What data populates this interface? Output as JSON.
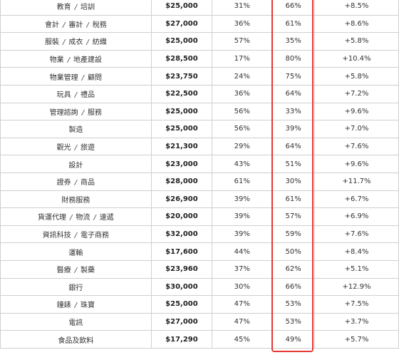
{
  "table": {
    "rows": [
      {
        "industry": [
          "教育",
          "培訓"
        ],
        "salary": "$25,000",
        "col2": "31%",
        "col3": "66%",
        "change": "+8.5%"
      },
      {
        "industry": [
          "會計",
          "審計",
          "稅務"
        ],
        "salary": "$27,000",
        "col2": "36%",
        "col3": "61%",
        "change": "+8.6%"
      },
      {
        "industry": [
          "服裝",
          "成衣",
          "紡織"
        ],
        "salary": "$25,000",
        "col2": "57%",
        "col3": "35%",
        "change": "+5.8%"
      },
      {
        "industry": [
          "物業",
          "地產建設"
        ],
        "salary": "$28,500",
        "col2": "17%",
        "col3": "80%",
        "change": "+10.4%"
      },
      {
        "industry": [
          "物業管理",
          "顧問"
        ],
        "salary": "$23,750",
        "col2": "24%",
        "col3": "75%",
        "change": "+5.8%"
      },
      {
        "industry": [
          "玩具",
          "禮品"
        ],
        "salary": "$22,500",
        "col2": "36%",
        "col3": "64%",
        "change": "+7.2%"
      },
      {
        "industry": [
          "管理諮詢",
          "服務"
        ],
        "salary": "$25,000",
        "col2": "56%",
        "col3": "33%",
        "change": "+9.6%"
      },
      {
        "industry": [
          "製造"
        ],
        "salary": "$25,000",
        "col2": "56%",
        "col3": "39%",
        "change": "+7.0%"
      },
      {
        "industry": [
          "觀光",
          "旅遊"
        ],
        "salary": "$21,300",
        "col2": "29%",
        "col3": "64%",
        "change": "+7.6%"
      },
      {
        "industry": [
          "設計"
        ],
        "salary": "$23,000",
        "col2": "43%",
        "col3": "51%",
        "change": "+9.6%"
      },
      {
        "industry": [
          "證券",
          "商品"
        ],
        "salary": "$28,000",
        "col2": "61%",
        "col3": "30%",
        "change": "+11.7%"
      },
      {
        "industry": [
          "財務服務"
        ],
        "salary": "$26,900",
        "col2": "39%",
        "col3": "61%",
        "change": "+6.7%"
      },
      {
        "industry": [
          "貨運代理",
          "物流",
          "速遞"
        ],
        "salary": "$20,000",
        "col2": "39%",
        "col3": "57%",
        "change": "+6.9%"
      },
      {
        "industry": [
          "資訊科技",
          "電子商務"
        ],
        "salary": "$32,000",
        "col2": "39%",
        "col3": "59%",
        "change": "+7.6%"
      },
      {
        "industry": [
          "運輸"
        ],
        "salary": "$17,600",
        "col2": "44%",
        "col3": "50%",
        "change": "+8.4%"
      },
      {
        "industry": [
          "醫療",
          "製藥"
        ],
        "salary": "$23,960",
        "col2": "37%",
        "col3": "62%",
        "change": "+5.1%"
      },
      {
        "industry": [
          "銀行"
        ],
        "salary": "$30,000",
        "col2": "30%",
        "col3": "66%",
        "change": "+12.9%"
      },
      {
        "industry": [
          "鐘錶",
          "珠寶"
        ],
        "salary": "$25,000",
        "col2": "47%",
        "col3": "53%",
        "change": "+7.5%"
      },
      {
        "industry": [
          "電訊"
        ],
        "salary": "$27,000",
        "col2": "47%",
        "col3": "53%",
        "change": "+3.7%"
      },
      {
        "industry": [
          "食品及飲料"
        ],
        "salary": "$17,290",
        "col2": "45%",
        "col3": "49%",
        "change": "+5.7%"
      }
    ],
    "separator": "/"
  },
  "colors": {
    "highlight_border": "#e53935",
    "grid_line": "#cfcfcf"
  }
}
